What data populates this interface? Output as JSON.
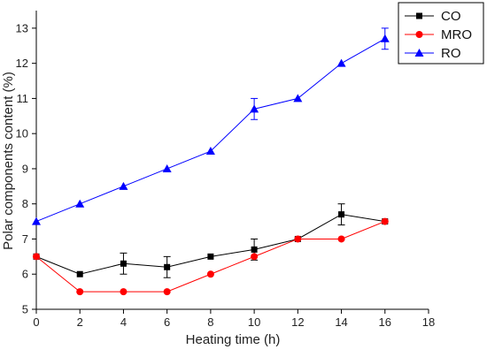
{
  "chart_data": {
    "type": "line",
    "title": "",
    "xlabel": "Heating time (h)",
    "ylabel": "Polar components content (%)",
    "xlim": [
      0,
      18
    ],
    "ylim": [
      5,
      13.5
    ],
    "xticks": [
      0,
      2,
      4,
      6,
      8,
      10,
      12,
      14,
      16,
      18
    ],
    "yticks": [
      5,
      6,
      7,
      8,
      9,
      10,
      11,
      12,
      13
    ],
    "grid": false,
    "legend_position": "top-right",
    "x": [
      0,
      2,
      4,
      6,
      8,
      10,
      12,
      14,
      16
    ],
    "series": [
      {
        "name": "CO",
        "color": "#000000",
        "marker": "square",
        "values": [
          6.5,
          6.0,
          6.3,
          6.2,
          6.5,
          6.7,
          7.0,
          7.7,
          7.5
        ],
        "errors": [
          0,
          0,
          0.3,
          0.3,
          0,
          0.3,
          0,
          0.3,
          0
        ]
      },
      {
        "name": "MRO",
        "color": "#ff0000",
        "marker": "circle",
        "values": [
          6.5,
          5.5,
          5.5,
          5.5,
          6.0,
          6.5,
          7.0,
          7.0,
          7.5
        ],
        "errors": [
          0,
          0,
          0,
          0,
          0,
          0,
          0,
          0,
          0
        ]
      },
      {
        "name": "RO",
        "color": "#0000ff",
        "marker": "triangle",
        "values": [
          7.5,
          8.0,
          8.5,
          9.0,
          9.5,
          10.7,
          11.0,
          12.0,
          12.7
        ],
        "errors": [
          0,
          0,
          0,
          0,
          0,
          0.3,
          0,
          0,
          0.3
        ]
      }
    ]
  }
}
